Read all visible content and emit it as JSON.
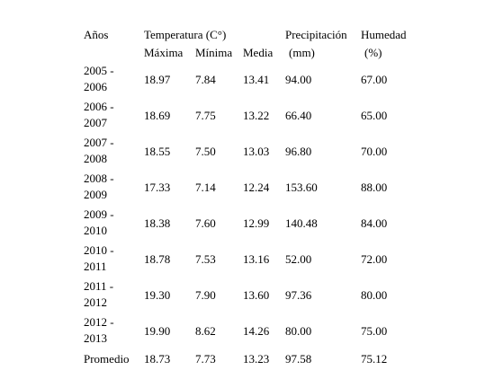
{
  "header": {
    "years_label": "Años",
    "temperature_label": "Temperatura (C°)",
    "max_label": "Máxima",
    "min_label": "Mínima",
    "avg_label": "Media",
    "precip_label": "Precipitación",
    "precip_unit": "(mm)",
    "humidity_label": "Humedad",
    "humidity_unit": "(%)"
  },
  "rows": [
    {
      "year_start": "2005 -",
      "year_end": "2006",
      "max": "18.97",
      "min": "7.84",
      "avg": "13.41",
      "precip": "94.00",
      "humidity": "67.00"
    },
    {
      "year_start": "2006 -",
      "year_end": "2007",
      "max": "18.69",
      "min": "7.75",
      "avg": "13.22",
      "precip": "66.40",
      "humidity": "65.00"
    },
    {
      "year_start": "2007 -",
      "year_end": "2008",
      "max": "18.55",
      "min": "7.50",
      "avg": "13.03",
      "precip": "96.80",
      "humidity": "70.00"
    },
    {
      "year_start": "2008 -",
      "year_end": "2009",
      "max": "17.33",
      "min": "7.14",
      "avg": "12.24",
      "precip": "153.60",
      "humidity": "88.00"
    },
    {
      "year_start": "2009 -",
      "year_end": "2010",
      "max": "18.38",
      "min": "7.60",
      "avg": "12.99",
      "precip": "140.48",
      "humidity": "84.00"
    },
    {
      "year_start": "2010 -",
      "year_end": "2011",
      "max": "18.78",
      "min": "7.53",
      "avg": "13.16",
      "precip": "52.00",
      "humidity": "72.00"
    },
    {
      "year_start": "2011 -",
      "year_end": "2012",
      "max": "19.30",
      "min": "7.90",
      "avg": "13.60",
      "precip": "97.36",
      "humidity": "80.00"
    },
    {
      "year_start": "2012 -",
      "year_end": "2013",
      "max": "19.90",
      "min": "8.62",
      "avg": "14.26",
      "precip": "80.00",
      "humidity": "75.00"
    }
  ],
  "average": {
    "label": "Promedio",
    "max": "18.73",
    "min": "7.73",
    "avg": "13.23",
    "precip": "97.58",
    "humidity": "75.12"
  }
}
